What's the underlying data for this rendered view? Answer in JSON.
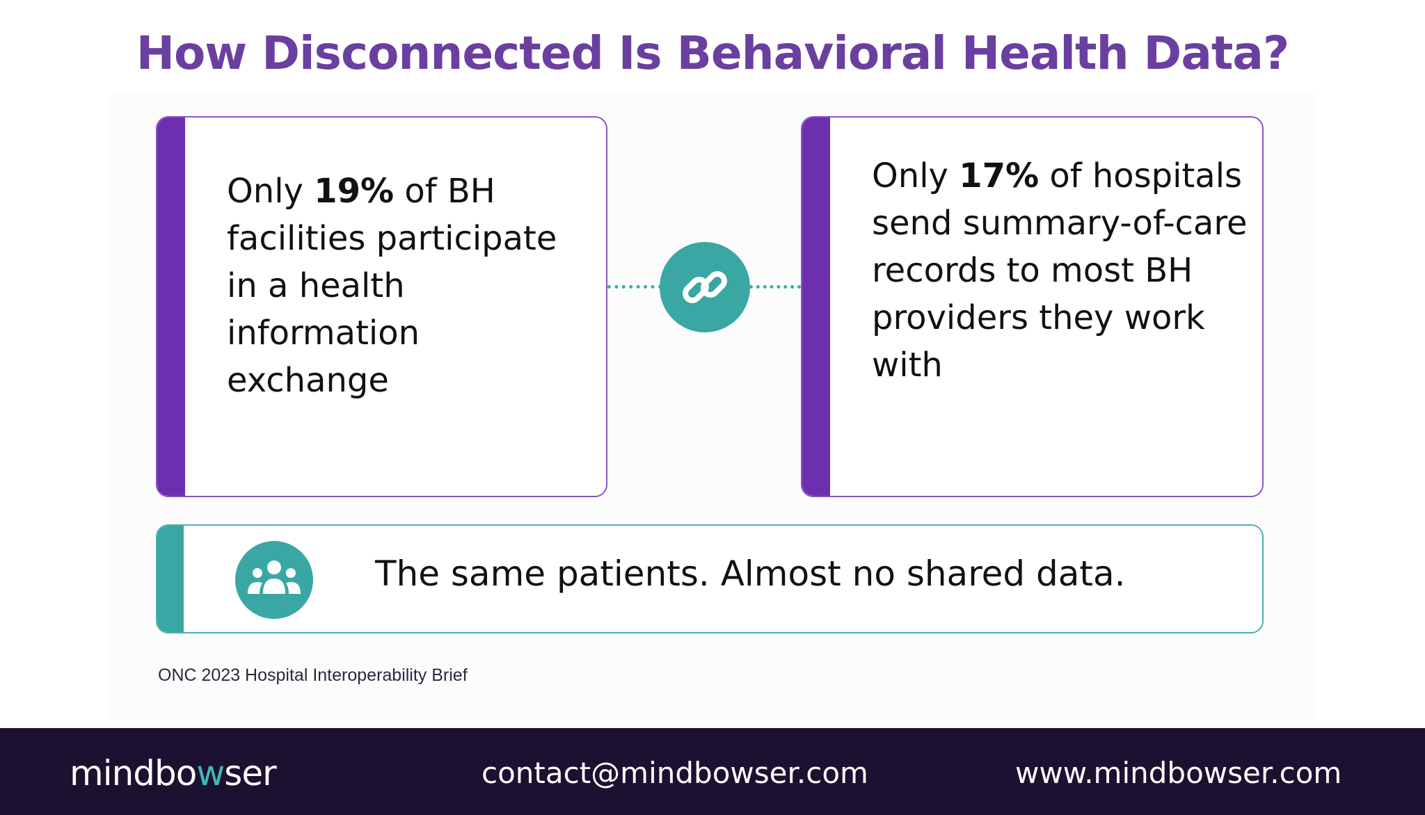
{
  "title": "How Disconnected Is Behavioral Health Data?",
  "stats": [
    {
      "prefix": "Only ",
      "value": "19%",
      "suffix": " of BH facilities participate in a health information exchange"
    },
    {
      "prefix": "Only ",
      "value": "17%",
      "suffix": " of hospitals send summary-of-care records to most BH providers they work with"
    }
  ],
  "banner": {
    "text": "The same patients. Almost no shared data."
  },
  "source": "ONC 2023 Hospital Interoperability Brief",
  "footer": {
    "logo_pre": "mindbo",
    "logo_accent": "w",
    "logo_post": "ser",
    "email": "contact@mindbowser.com",
    "website": "www.mindbowser.com"
  },
  "icons": {
    "connector": "link-icon",
    "banner": "people-group-icon"
  },
  "colors": {
    "title": "#6b3fa0",
    "purple_bar": "#6d2fb0",
    "teal": "#3aa7a4",
    "footer_bg": "#1c1130"
  }
}
